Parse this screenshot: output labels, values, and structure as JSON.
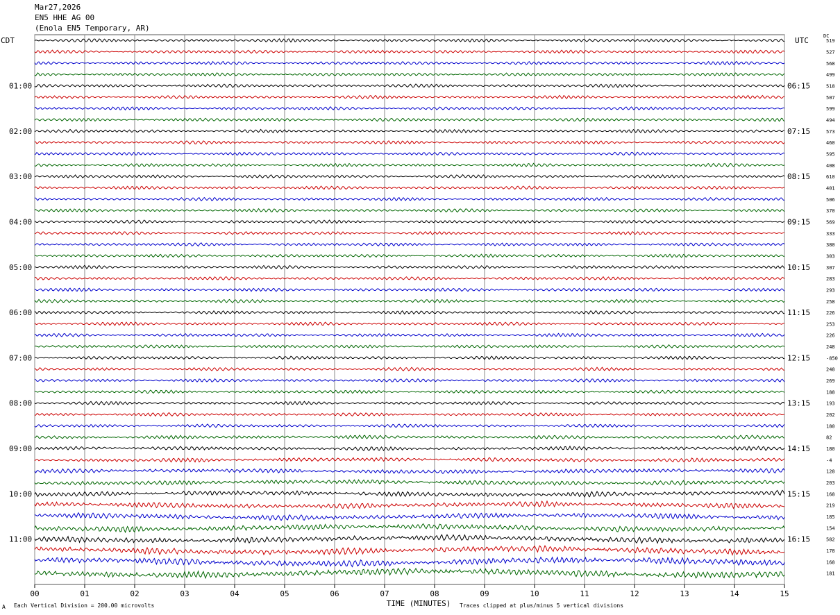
{
  "header": {
    "date": "Mar27,2026",
    "station": "EN5 HHE AG 00",
    "location": "(Enola EN5 Temporary, AR)"
  },
  "left_tz": "CDT",
  "right_tz": "UTC",
  "dc_label": "DC",
  "footer": {
    "scale": "Each Vertical Division =  200.00 microvolts",
    "clip": "Traces clipped at plus/minus 5 vertical divisions",
    "corner_mark": "A"
  },
  "colors": {
    "trace_cycle": [
      "#000000",
      "#cc0000",
      "#0000cc",
      "#006600"
    ],
    "grid": "#888888"
  },
  "chart_data": {
    "type": "line",
    "description_type": "helicorder",
    "xlabel": "TIME (MINUTES)",
    "xlim": [
      0,
      15
    ],
    "x_ticks": [
      "00",
      "01",
      "02",
      "03",
      "04",
      "05",
      "06",
      "07",
      "08",
      "09",
      "10",
      "11",
      "12",
      "13",
      "14",
      "15"
    ],
    "rows_per_hour": 4,
    "row_count": 48,
    "left_hour_labels": [
      "01:00",
      "02:00",
      "03:00",
      "04:00",
      "05:00",
      "06:00",
      "07:00",
      "08:00",
      "09:00",
      "10:00",
      "11:00"
    ],
    "right_hour_labels": [
      "06:15",
      "07:15",
      "08:15",
      "09:15",
      "10:15",
      "11:15",
      "12:15",
      "13:15",
      "14:15",
      "15:15",
      "16:15"
    ],
    "hour_label_rows": [
      4,
      8,
      12,
      16,
      20,
      24,
      28,
      32,
      36,
      40,
      44
    ],
    "dc_offsets": [
      "519",
      "527",
      "568",
      "499",
      "518",
      "507",
      "599",
      "494",
      "573",
      "460",
      "595",
      "408",
      "610",
      "401",
      "506",
      "370",
      "569",
      "333",
      "380",
      "303",
      "307",
      "283",
      "293",
      "258",
      "226",
      "253",
      "226",
      "248",
      "-850",
      "248",
      "269",
      "188",
      "193",
      "202",
      "180",
      "82",
      "180",
      "-4",
      "128",
      "203",
      "168",
      "219",
      "185",
      "154",
      "582",
      "178",
      "168",
      "181"
    ]
  }
}
